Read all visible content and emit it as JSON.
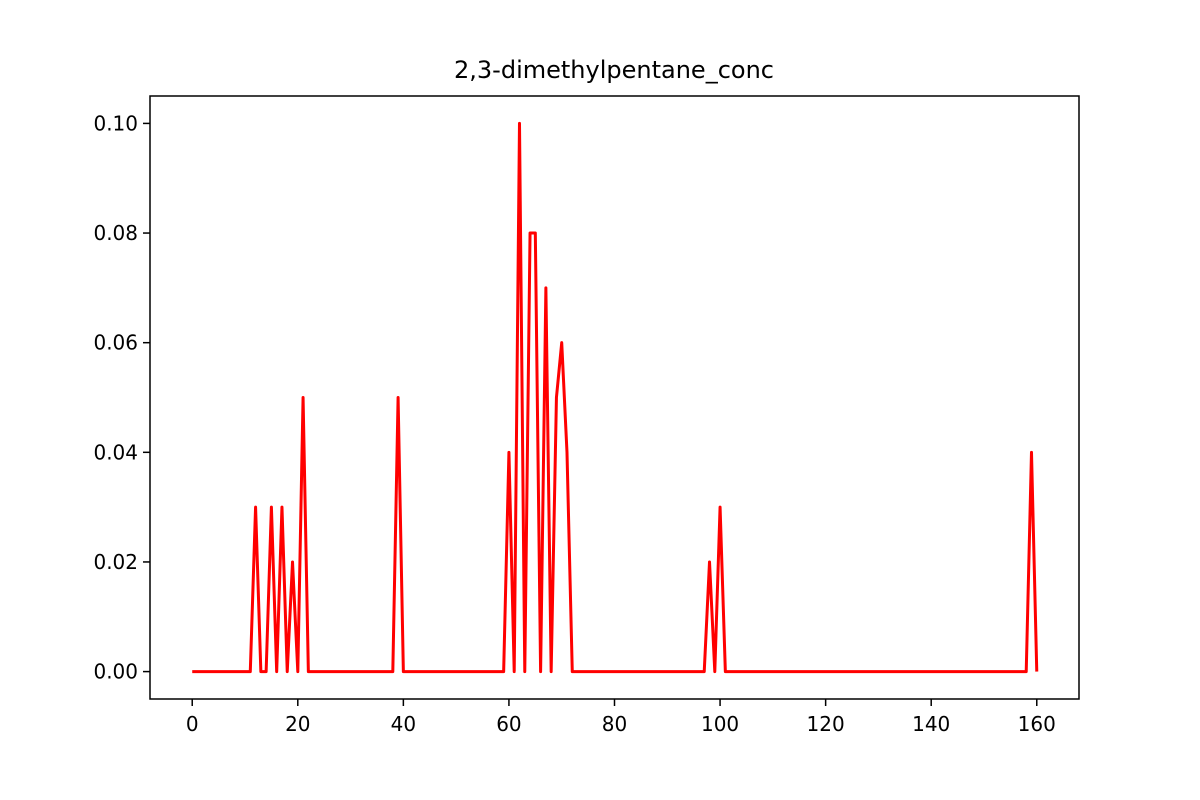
{
  "chart_data": {
    "type": "line",
    "title": "2,3-dimethylpentane_conc",
    "xlabel": "",
    "ylabel": "",
    "xlim": [
      -8,
      168
    ],
    "ylim": [
      -0.005,
      0.105
    ],
    "x_ticks": [
      0,
      20,
      40,
      60,
      80,
      100,
      120,
      140,
      160
    ],
    "x_tick_labels": [
      "0",
      "20",
      "40",
      "60",
      "80",
      "100",
      "120",
      "140",
      "160"
    ],
    "y_ticks": [
      0.0,
      0.02,
      0.04,
      0.06,
      0.08,
      0.1
    ],
    "y_tick_labels": [
      "0.00",
      "0.02",
      "0.04",
      "0.06",
      "0.08",
      "0.10"
    ],
    "grid": false,
    "legend": "none",
    "series": [
      {
        "color": "#ff0000",
        "x": [
          0,
          11,
          12,
          13,
          14,
          15,
          16,
          17,
          18,
          19,
          20,
          21,
          22,
          38,
          39,
          40,
          59,
          60,
          61,
          62,
          63,
          64,
          65,
          66,
          67,
          68,
          69,
          70,
          71,
          72,
          97,
          98,
          99,
          100,
          101,
          158,
          159,
          160
        ],
        "y": [
          0,
          0,
          0.03,
          0,
          0,
          0.03,
          0,
          0.03,
          0,
          0.02,
          0,
          0.05,
          0,
          0,
          0.05,
          0,
          0,
          0.04,
          0,
          0.1,
          0,
          0.08,
          0.08,
          0,
          0.07,
          0,
          0.05,
          0.06,
          0.04,
          0,
          0,
          0.02,
          0,
          0.03,
          0,
          0,
          0.04,
          0
        ]
      }
    ]
  }
}
